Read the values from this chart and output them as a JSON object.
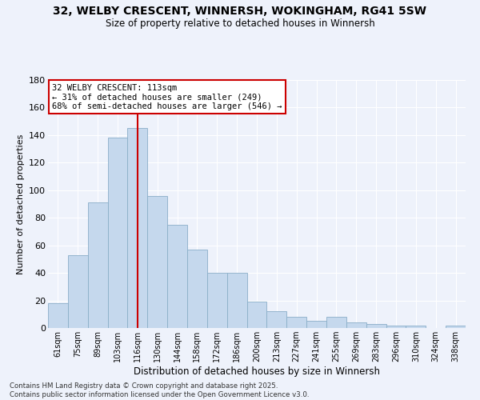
{
  "title": "32, WELBY CRESCENT, WINNERSH, WOKINGHAM, RG41 5SW",
  "subtitle": "Size of property relative to detached houses in Winnersh",
  "xlabel": "Distribution of detached houses by size in Winnersh",
  "ylabel": "Number of detached properties",
  "categories": [
    "61sqm",
    "75sqm",
    "89sqm",
    "103sqm",
    "116sqm",
    "130sqm",
    "144sqm",
    "158sqm",
    "172sqm",
    "186sqm",
    "200sqm",
    "213sqm",
    "227sqm",
    "241sqm",
    "255sqm",
    "269sqm",
    "283sqm",
    "296sqm",
    "310sqm",
    "324sqm",
    "338sqm"
  ],
  "values": [
    18,
    53,
    91,
    138,
    145,
    96,
    75,
    57,
    40,
    40,
    19,
    12,
    8,
    5,
    8,
    4,
    3,
    2,
    2,
    0,
    2
  ],
  "bar_color": "#c5d8ed",
  "bar_edge_color": "#8aaec8",
  "background_color": "#eef2fb",
  "grid_color": "#ffffff",
  "vline_color": "#cc0000",
  "vline_index": 4,
  "annotation_text_line1": "32 WELBY CRESCENT: 113sqm",
  "annotation_text_line2": "← 31% of detached houses are smaller (249)",
  "annotation_text_line3": "68% of semi-detached houses are larger (546) →",
  "footer_line1": "Contains HM Land Registry data © Crown copyright and database right 2025.",
  "footer_line2": "Contains public sector information licensed under the Open Government Licence v3.0.",
  "ylim": [
    0,
    180
  ],
  "yticks": [
    0,
    20,
    40,
    60,
    80,
    100,
    120,
    140,
    160,
    180
  ]
}
